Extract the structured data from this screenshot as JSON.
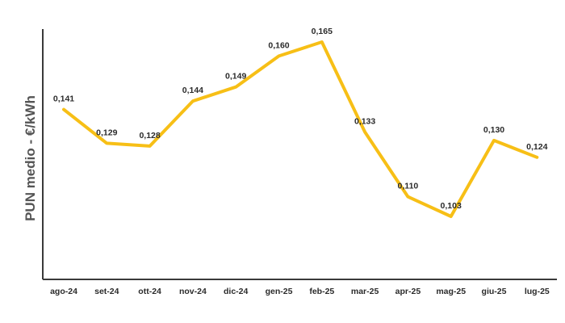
{
  "chart_data": {
    "type": "line",
    "categories": [
      "ago-24",
      "set-24",
      "ott-24",
      "nov-24",
      "dic-24",
      "gen-25",
      "feb-25",
      "mar-25",
      "apr-25",
      "mag-25",
      "giu-25",
      "lug-25"
    ],
    "series": [
      {
        "values": [
          0.141,
          0.129,
          0.128,
          0.144,
          0.149,
          0.16,
          0.165,
          0.133,
          0.11,
          0.103,
          0.13,
          0.124
        ],
        "labels": [
          "0,141",
          "0,129",
          "0,128",
          "0,144",
          "0,149",
          "0,160",
          "0,165",
          "0,133",
          "0,110",
          "0,103",
          "0,130",
          "0,124"
        ],
        "color": "#f7bf16"
      }
    ],
    "title": "",
    "xlabel": "",
    "ylabel": "PUN medio - €/kWh",
    "ylim": [
      0.08,
      0.175
    ],
    "grid": false,
    "legend": "none",
    "axis_color": "#3a3a3a"
  }
}
